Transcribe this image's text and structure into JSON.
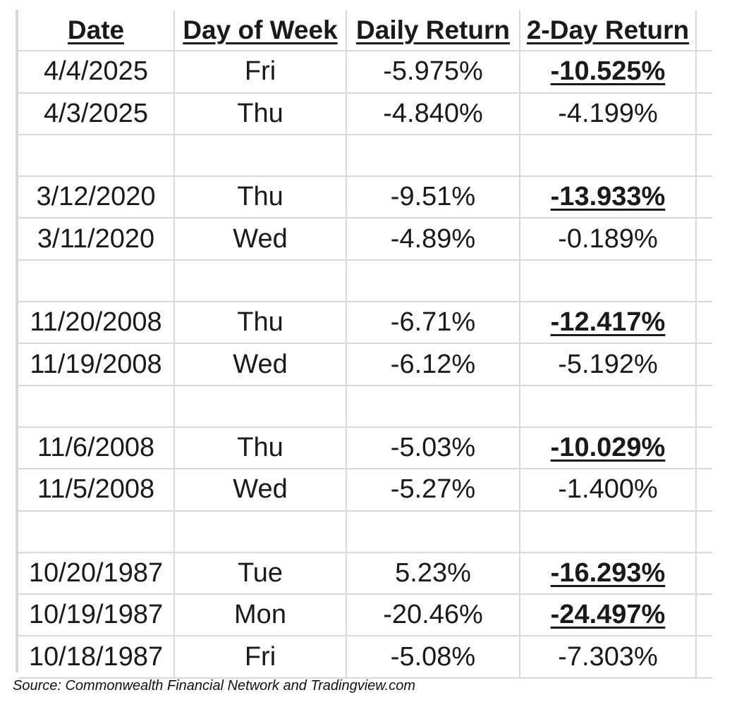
{
  "table": {
    "headers": {
      "date": "Date",
      "day_of_week": "Day of Week",
      "daily_return": "Daily Return",
      "two_day_return": "2-Day Return"
    },
    "rows": [
      {
        "date": "4/4/2025",
        "day": "Fri",
        "daily": "-5.975%",
        "two_day": "-10.525%",
        "highlight": true
      },
      {
        "date": "4/3/2025",
        "day": "Thu",
        "daily": "-4.840%",
        "two_day": "-4.199%",
        "highlight": false
      },
      {
        "blank": true
      },
      {
        "date": "3/12/2020",
        "day": "Thu",
        "daily": "-9.51%",
        "two_day": "-13.933%",
        "highlight": true
      },
      {
        "date": "3/11/2020",
        "day": "Wed",
        "daily": "-4.89%",
        "two_day": "-0.189%",
        "highlight": false
      },
      {
        "blank": true
      },
      {
        "date": "11/20/2008",
        "day": "Thu",
        "daily": "-6.71%",
        "two_day": "-12.417%",
        "highlight": true
      },
      {
        "date": "11/19/2008",
        "day": "Wed",
        "daily": "-6.12%",
        "two_day": "-5.192%",
        "highlight": false
      },
      {
        "blank": true
      },
      {
        "date": "11/6/2008",
        "day": "Thu",
        "daily": "-5.03%",
        "two_day": "-10.029%",
        "highlight": true
      },
      {
        "date": "11/5/2008",
        "day": "Wed",
        "daily": "-5.27%",
        "two_day": "-1.400%",
        "highlight": false
      },
      {
        "blank": true
      },
      {
        "date": "10/20/1987",
        "day": "Tue",
        "daily": "5.23%",
        "two_day": "-16.293%",
        "highlight": true
      },
      {
        "date": "10/19/1987",
        "day": "Mon",
        "daily": "-20.46%",
        "two_day": "-24.497%",
        "highlight": true
      },
      {
        "date": "10/18/1987",
        "day": "Fri",
        "daily": "-5.08%",
        "two_day": "-7.303%",
        "highlight": false
      }
    ]
  },
  "source": "Source: Commonwealth Financial Network and Tradingview.com"
}
